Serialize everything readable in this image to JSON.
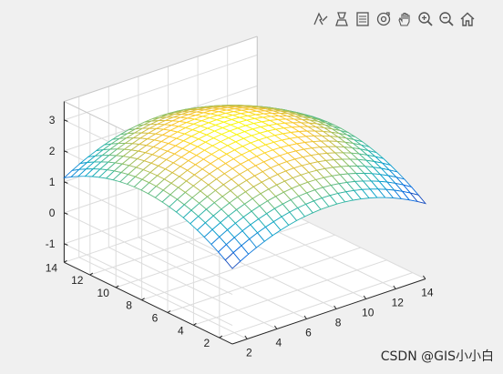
{
  "toolbar": {
    "buttons": [
      {
        "name": "edit-plot-icon"
      },
      {
        "name": "brush-icon"
      },
      {
        "name": "data-cursor-icon"
      },
      {
        "name": "rotate-3d-icon"
      },
      {
        "name": "pan-hand-icon"
      },
      {
        "name": "zoom-in-icon"
      },
      {
        "name": "zoom-out-icon"
      },
      {
        "name": "home-icon"
      }
    ]
  },
  "watermark": "CSDN @GIS小小白",
  "chart_data": {
    "type": "surface-mesh-3d",
    "x": {
      "ticks": [
        2,
        4,
        6,
        8,
        10,
        12,
        14
      ],
      "lim": [
        1,
        14
      ]
    },
    "y": {
      "ticks": [
        2,
        4,
        6,
        8,
        10,
        12,
        14
      ],
      "lim": [
        1,
        14
      ]
    },
    "z": {
      "ticks": [
        -1,
        0,
        1,
        2,
        3
      ],
      "lim": [
        -1.6,
        3.6
      ]
    },
    "grid": true,
    "colormap": "parula",
    "mesh_size": [
      25,
      25
    ],
    "surface": "dome, peak ~2.9 near center, corners drop to about -0.5 at (x=1,y=1) and about 0.3-0.5 on the right edges"
  }
}
